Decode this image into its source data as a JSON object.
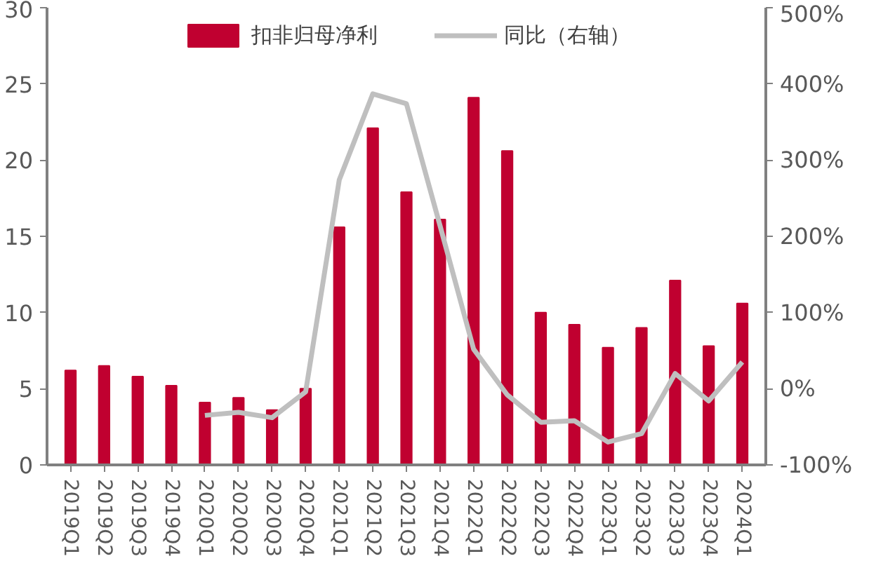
{
  "chart_data": {
    "type": "bar",
    "categories": [
      "2019Q1",
      "2019Q2",
      "2019Q3",
      "2019Q4",
      "2020Q1",
      "2020Q2",
      "2020Q3",
      "2020Q4",
      "2021Q1",
      "2021Q2",
      "2021Q3",
      "2021Q4",
      "2022Q1",
      "2022Q2",
      "2022Q3",
      "2022Q4",
      "2023Q1",
      "2023Q2",
      "2023Q3",
      "2023Q4",
      "2024Q1"
    ],
    "series": [
      {
        "name": "扣非归母净利",
        "color": "#c00030",
        "values": [
          6.2,
          6.5,
          5.8,
          5.2,
          4.1,
          4.4,
          3.6,
          5.0,
          15.6,
          22.1,
          17.9,
          16.1,
          24.1,
          20.6,
          10.0,
          9.2,
          7.7,
          9.0,
          12.1,
          7.8,
          10.6
        ]
      },
      {
        "name": "同比（右轴）",
        "type": "line",
        "axis": "y2",
        "color": "#bfbfbf",
        "values": [
          null,
          null,
          null,
          null,
          -35,
          -31,
          -38,
          -4,
          274,
          387,
          374,
          214,
          52,
          -8,
          -44,
          -42,
          -70,
          -59,
          20,
          -16,
          35
        ]
      }
    ],
    "ylim": [
      0,
      30
    ],
    "yticks": [
      0,
      5,
      10,
      15,
      20,
      25,
      30
    ],
    "y2lim": [
      -100,
      500
    ],
    "y2ticks": [
      {
        "value": -100,
        "label": "-100%"
      },
      {
        "value": 0,
        "label": "0%"
      },
      {
        "value": 100,
        "label": "100%"
      },
      {
        "value": 200,
        "label": "200%"
      },
      {
        "value": 300,
        "label": "300%"
      },
      {
        "value": 400,
        "label": "400%"
      },
      {
        "value": 500,
        "label": "500%"
      }
    ],
    "legend": "top",
    "grid": false,
    "line_style": "solid",
    "marker": "none"
  }
}
